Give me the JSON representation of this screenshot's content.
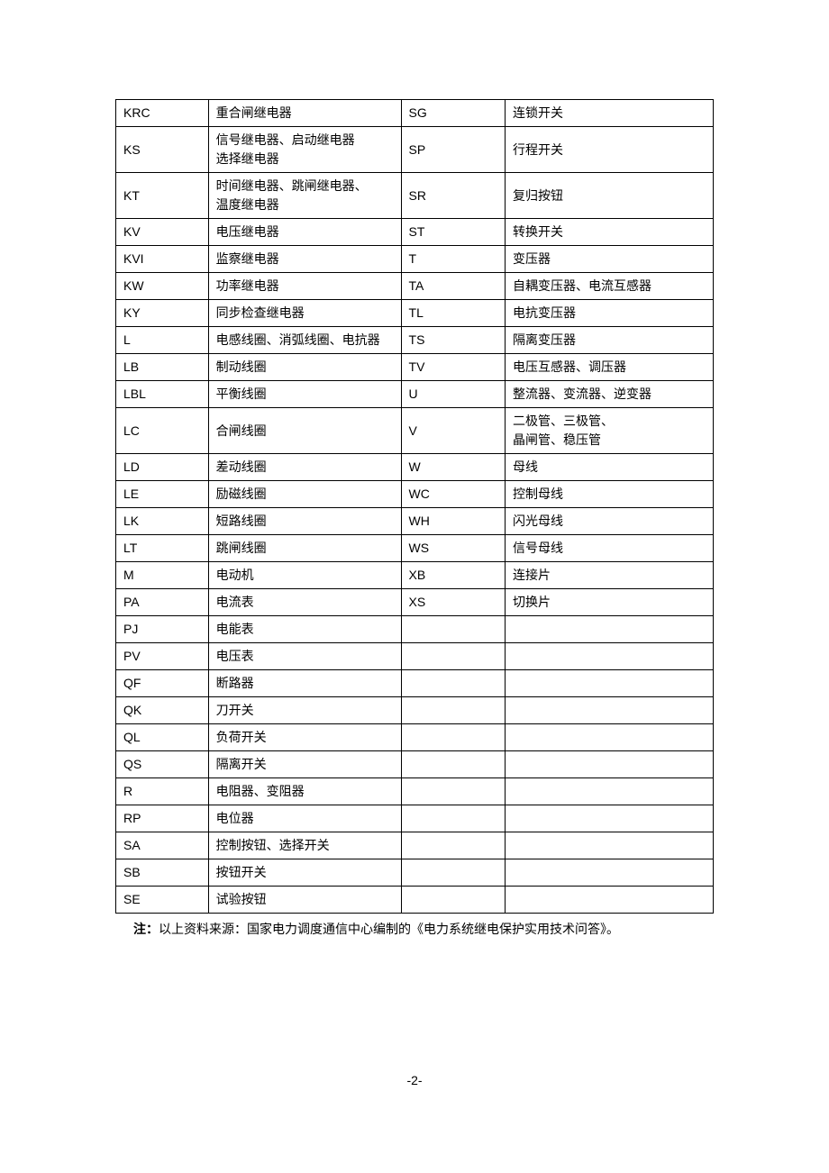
{
  "table": {
    "rows": [
      {
        "c1": "KRC",
        "c2": "重合闸继电器",
        "c3": "SG",
        "c4": "连锁开关"
      },
      {
        "c1": "KS",
        "c2": "信号继电器、启动继电器\n选择继电器",
        "c3": "SP",
        "c4": "行程开关"
      },
      {
        "c1": "KT",
        "c2": "时间继电器、跳闸继电器、\n温度继电器",
        "c3": "SR",
        "c4": "复归按钮"
      },
      {
        "c1": "KV",
        "c2": "电压继电器",
        "c3": "ST",
        "c4": "转换开关"
      },
      {
        "c1": "KVI",
        "c2": "监察继电器",
        "c3": "T",
        "c4": "变压器"
      },
      {
        "c1": "KW",
        "c2": "功率继电器",
        "c3": "TA",
        "c4": "自耦变压器、电流互感器"
      },
      {
        "c1": "KY",
        "c2": "同步检查继电器",
        "c3": "TL",
        "c4": "电抗变压器"
      },
      {
        "c1": "L",
        "c2": "电感线圈、消弧线圈、电抗器",
        "c3": "TS",
        "c4": "隔离变压器"
      },
      {
        "c1": "LB",
        "c2": "制动线圈",
        "c3": "TV",
        "c4": "电压互感器、调压器"
      },
      {
        "c1": "LBL",
        "c2": "平衡线圈",
        "c3": "U",
        "c4": "整流器、变流器、逆变器"
      },
      {
        "c1": "LC",
        "c2": "合闸线圈",
        "c3": "V",
        "c4": "二极管、三极管、\n晶闸管、稳压管"
      },
      {
        "c1": "LD",
        "c2": "差动线圈",
        "c3": "W",
        "c4": "母线"
      },
      {
        "c1": "LE",
        "c2": "励磁线圈",
        "c3": "WC",
        "c4": "控制母线"
      },
      {
        "c1": "LK",
        "c2": "短路线圈",
        "c3": "WH",
        "c4": "闪光母线"
      },
      {
        "c1": "LT",
        "c2": "跳闸线圈",
        "c3": "WS",
        "c4": "信号母线"
      },
      {
        "c1": "M",
        "c2": "电动机",
        "c3": "XB",
        "c4": "连接片"
      },
      {
        "c1": "PA",
        "c2": "电流表",
        "c3": "XS",
        "c4": "切换片"
      },
      {
        "c1": "PJ",
        "c2": "电能表",
        "c3": "",
        "c4": ""
      },
      {
        "c1": "PV",
        "c2": "电压表",
        "c3": "",
        "c4": ""
      },
      {
        "c1": "QF",
        "c2": "断路器",
        "c3": "",
        "c4": ""
      },
      {
        "c1": "QK",
        "c2": "刀开关",
        "c3": "",
        "c4": ""
      },
      {
        "c1": "QL",
        "c2": "负荷开关",
        "c3": "",
        "c4": ""
      },
      {
        "c1": "QS",
        "c2": "隔离开关",
        "c3": "",
        "c4": ""
      },
      {
        "c1": "R",
        "c2": "电阻器、变阻器",
        "c3": "",
        "c4": ""
      },
      {
        "c1": "RP",
        "c2": "电位器",
        "c3": "",
        "c4": ""
      },
      {
        "c1": "SA",
        "c2": "控制按钮、选择开关",
        "c3": "",
        "c4": ""
      },
      {
        "c1": "SB",
        "c2": "按钮开关",
        "c3": "",
        "c4": ""
      },
      {
        "c1": "SE",
        "c2": "试验按钮",
        "c3": "",
        "c4": ""
      }
    ]
  },
  "note": {
    "label": "注：",
    "text": "以上资料来源：国家电力调度通信中心编制的《电力系统继电保护实用技术问答》。"
  },
  "page_number": "-2-"
}
